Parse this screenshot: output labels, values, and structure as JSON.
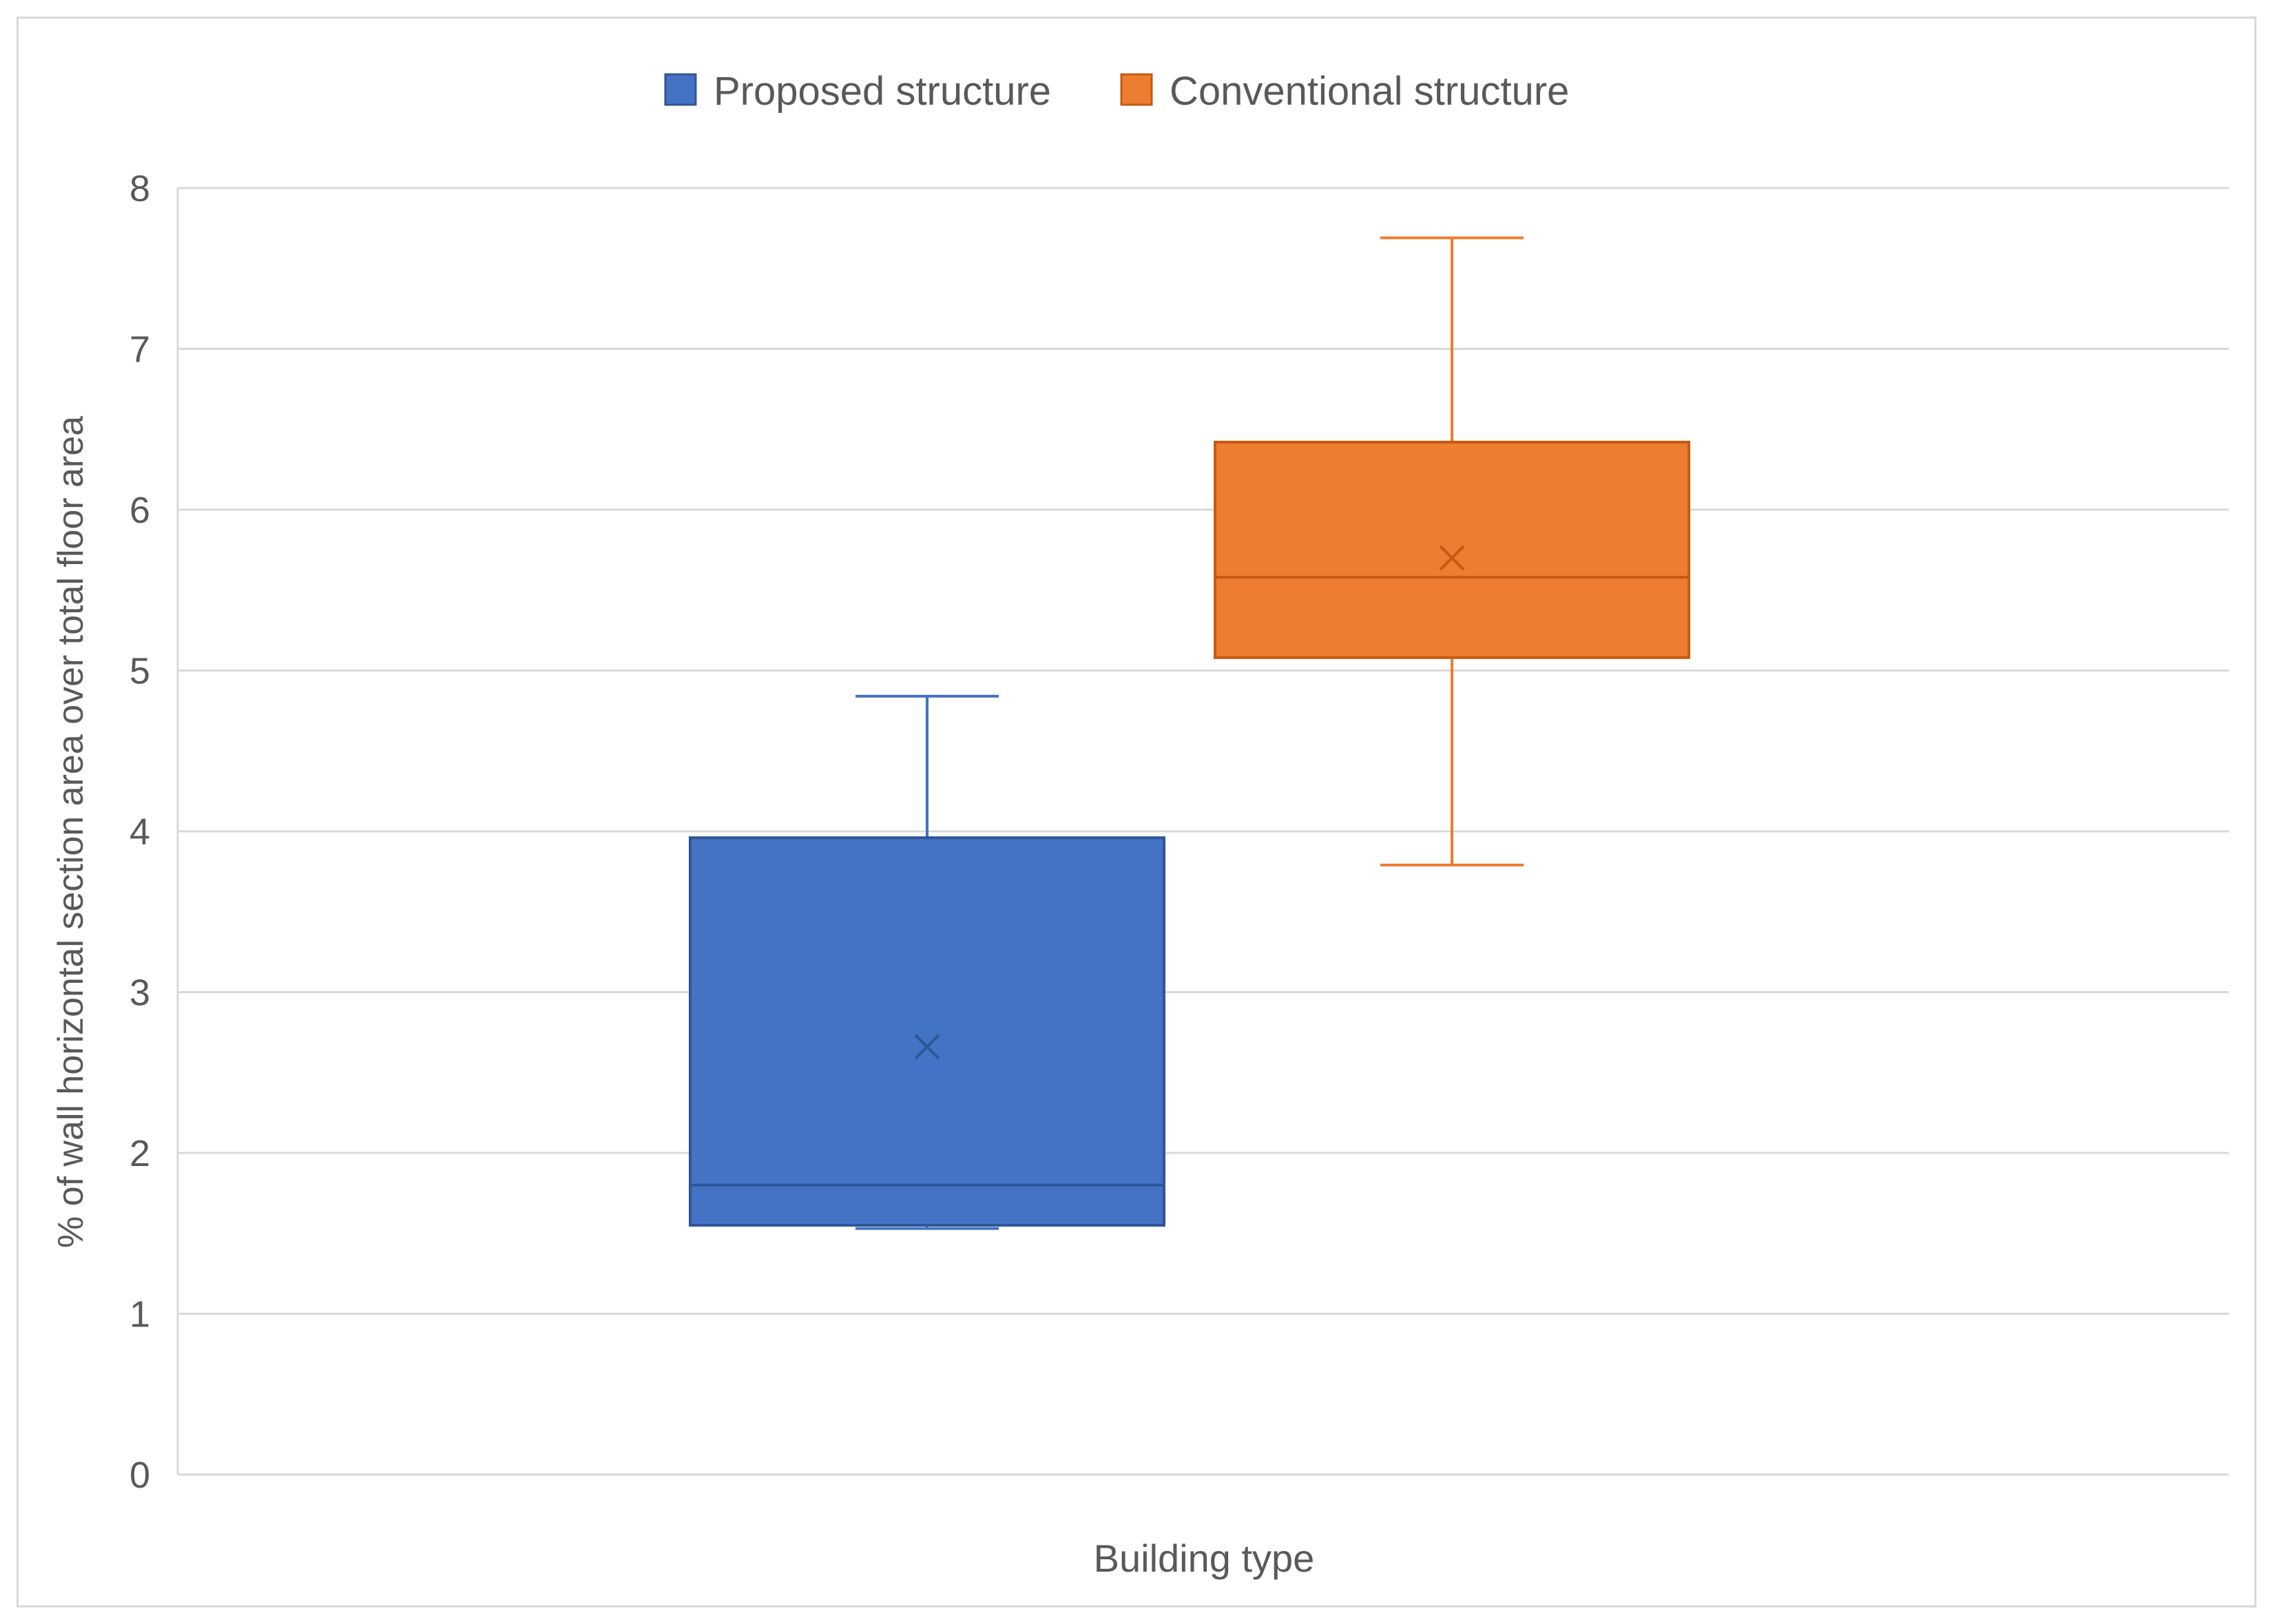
{
  "chart_data": {
    "type": "box",
    "title": "",
    "xlabel": "Building type",
    "ylabel": "% of wall horizontal section area over total floor area",
    "ylim": [
      0,
      8
    ],
    "yticks": [
      "0",
      "1",
      "2",
      "3",
      "4",
      "5",
      "6",
      "7",
      "8"
    ],
    "grid": true,
    "legend_position": "top-center",
    "series": [
      {
        "name": "Proposed structure",
        "color": "#4472C4",
        "min": 1.53,
        "q1": 1.55,
        "median": 1.8,
        "mean": 2.66,
        "q3": 3.96,
        "max": 4.84
      },
      {
        "name": "Conventional structure",
        "color": "#ED7D31",
        "min": 3.79,
        "q1": 5.08,
        "median": 5.58,
        "mean": 5.7,
        "q3": 6.42,
        "max": 7.69
      }
    ]
  }
}
